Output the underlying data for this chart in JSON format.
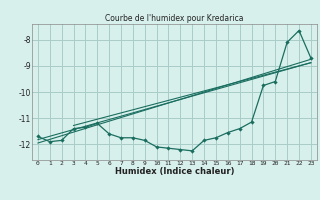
{
  "title": "Courbe de l'humidex pour Kredarica",
  "xlabel": "Humidex (Indice chaleur)",
  "bg_color": "#d8f0ec",
  "grid_color": "#aaccc8",
  "line_color": "#1a6e60",
  "x_values": [
    0,
    1,
    2,
    3,
    4,
    5,
    6,
    7,
    8,
    9,
    10,
    11,
    12,
    13,
    14,
    15,
    16,
    17,
    18,
    19,
    20,
    21,
    22,
    23
  ],
  "y_main": [
    -11.7,
    -11.9,
    -11.85,
    -11.4,
    -11.35,
    -11.2,
    -11.6,
    -11.75,
    -11.75,
    -11.85,
    -12.1,
    -12.15,
    -12.2,
    -12.25,
    -11.85,
    -11.75,
    -11.55,
    -11.4,
    -11.15,
    -9.75,
    -9.6,
    -8.1,
    -7.65,
    -8.7
  ],
  "ylim": [
    -12.6,
    -7.4
  ],
  "xlim": [
    -0.5,
    23.5
  ],
  "yticks": [
    -12,
    -11,
    -10,
    -9,
    -8
  ],
  "xticks": [
    0,
    1,
    2,
    3,
    4,
    5,
    6,
    7,
    8,
    9,
    10,
    11,
    12,
    13,
    14,
    15,
    16,
    17,
    18,
    19,
    20,
    21,
    22,
    23
  ],
  "reg_line1": [
    [
      0,
      23
    ],
    [
      -11.95,
      -8.75
    ]
  ],
  "reg_line2": [
    [
      0,
      23
    ],
    [
      -11.82,
      -8.88
    ]
  ],
  "reg_line3": [
    [
      3,
      23
    ],
    [
      -11.28,
      -8.88
    ]
  ]
}
